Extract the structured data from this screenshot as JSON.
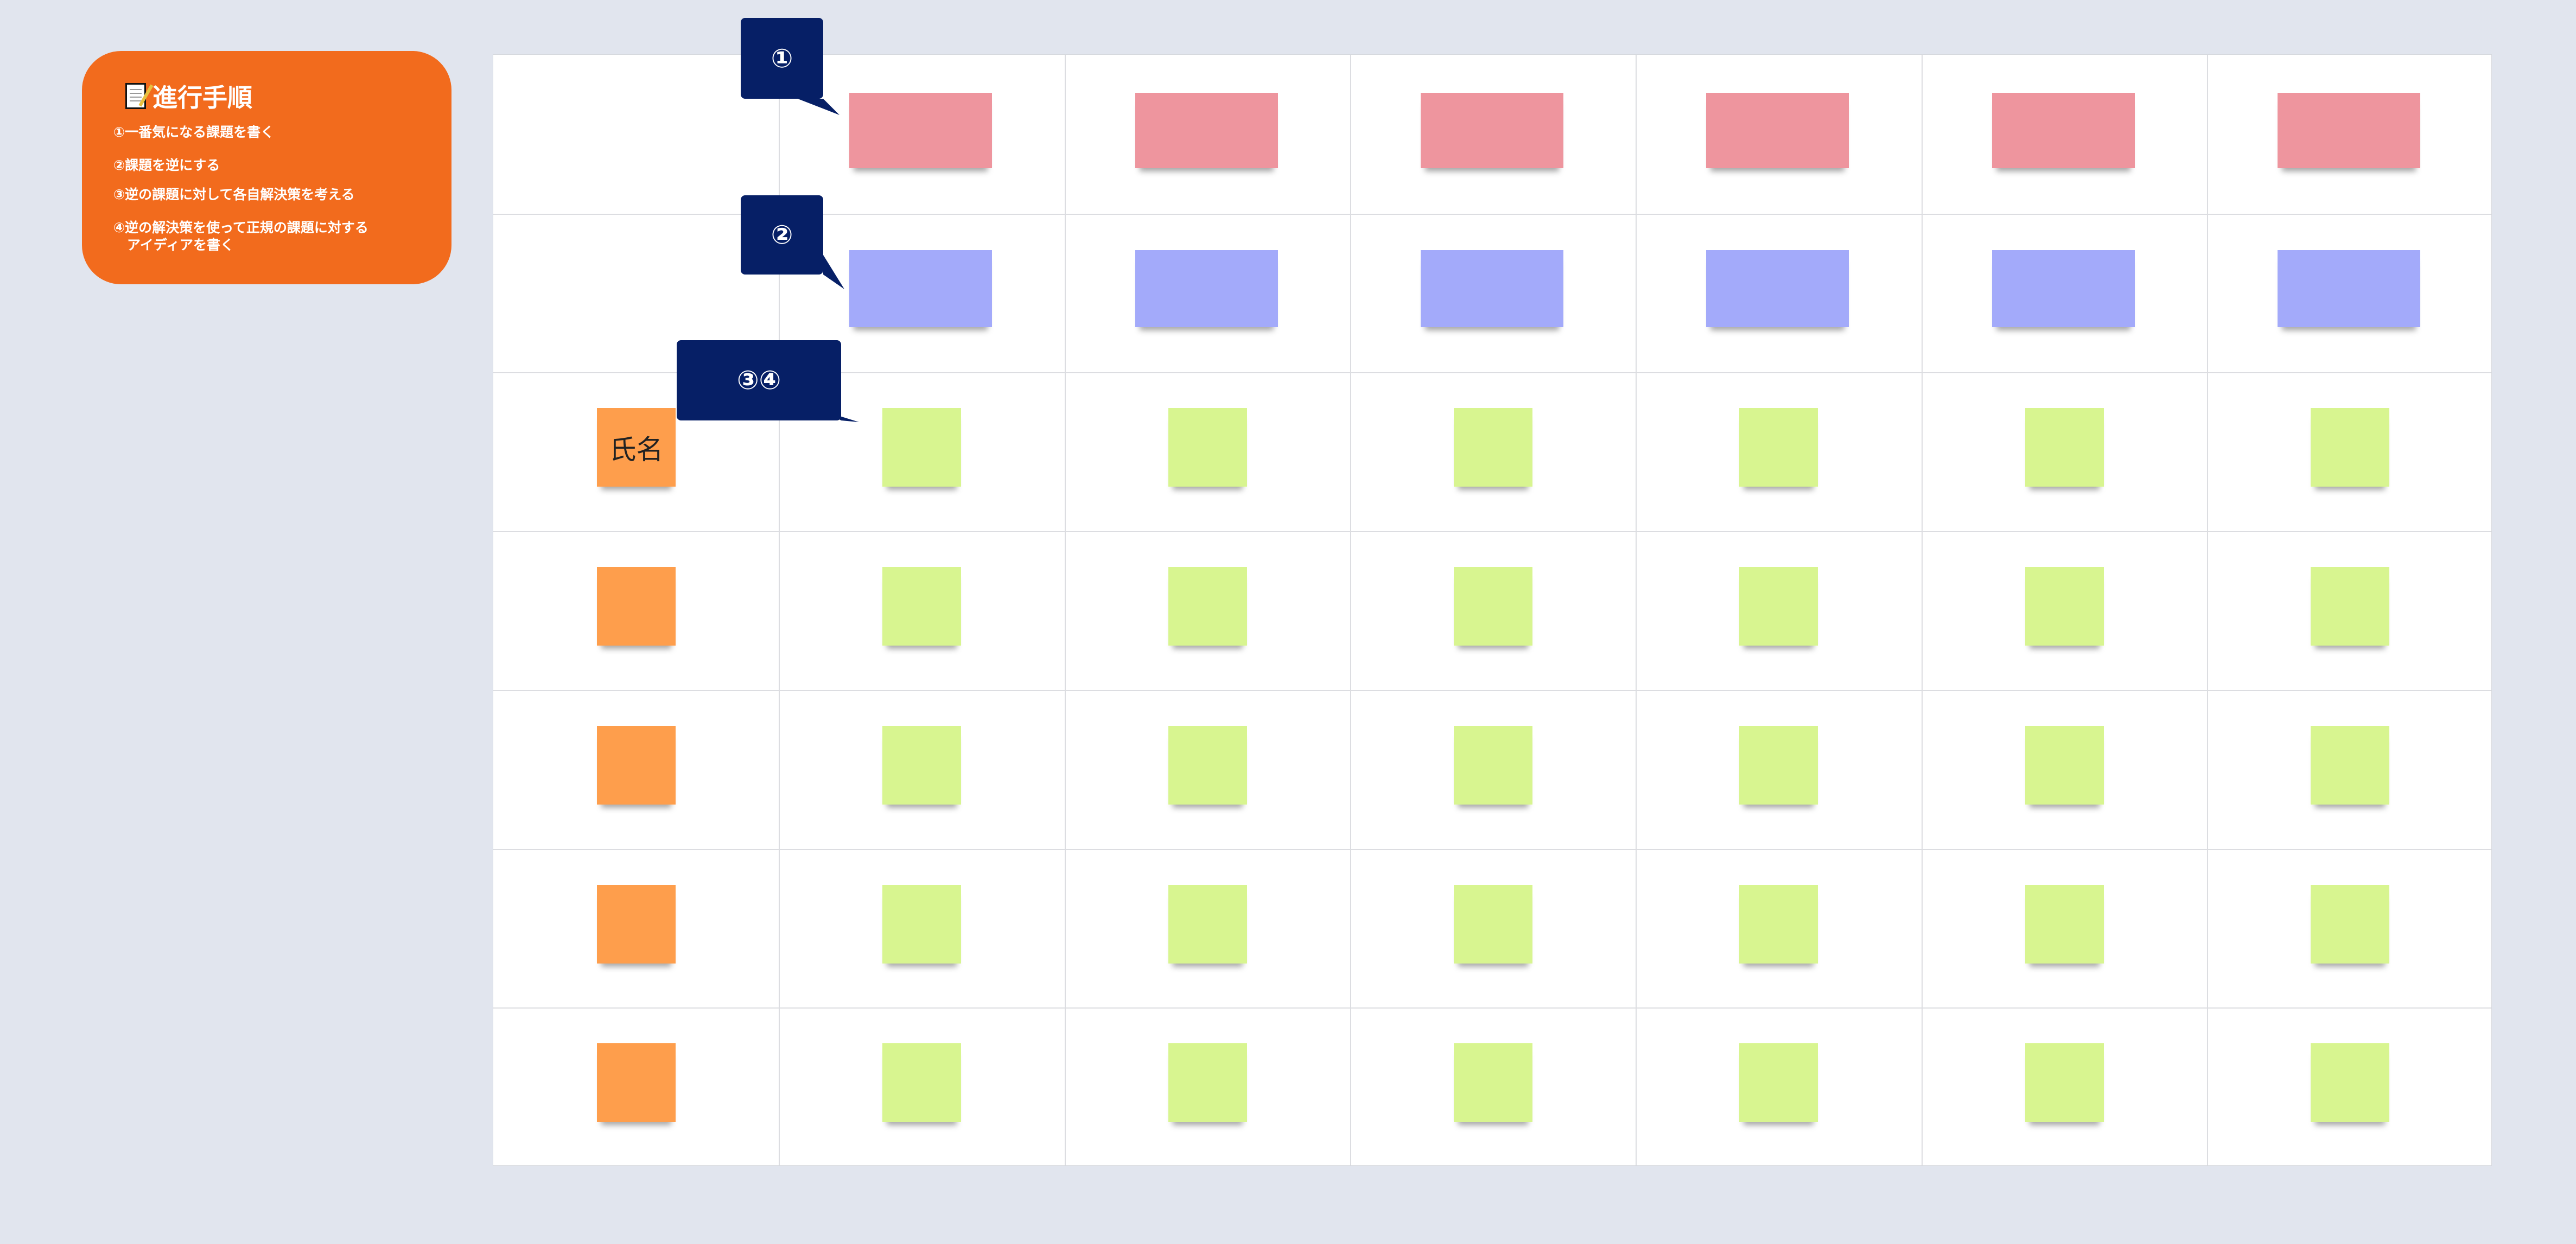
{
  "panel": {
    "icon": "memo-icon",
    "title": "進行手順",
    "steps": [
      "①一番気になる課題を書く",
      "②課題を逆にする",
      "③逆の課題に対して各自解決策を考える",
      "④逆の解決策を使って正規の課題に対する\n　アイディアを書く"
    ]
  },
  "callouts": [
    {
      "label": "①"
    },
    {
      "label": "②"
    },
    {
      "label": "③④"
    }
  ],
  "board": {
    "name_label": "氏名",
    "colors": {
      "issue": "#EE959E",
      "reversed": "#A3AAFA",
      "idea": "#D8F590",
      "name": "#FE9E4C",
      "panel": "#F26B1D",
      "callout": "#061F66"
    }
  }
}
